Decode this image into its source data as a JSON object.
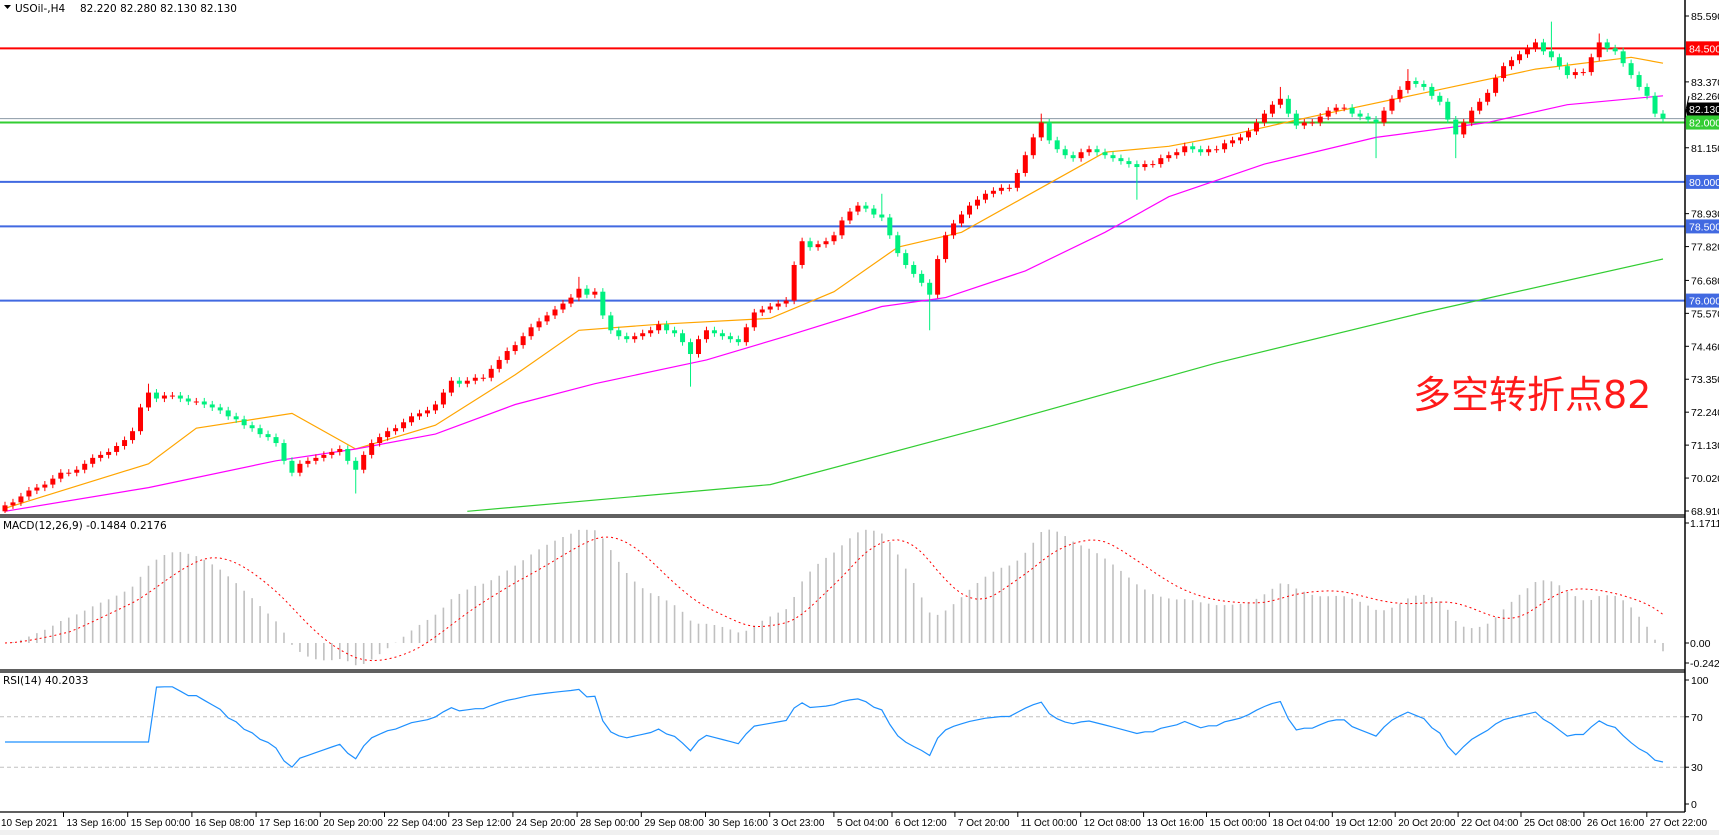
{
  "header": {
    "symbol": "USOil-,H4",
    "ohlc_text": "82.220 82.280 82.130 82.130"
  },
  "annotation": {
    "text": "多空转折点82",
    "color": "#ff1a1a"
  },
  "colors": {
    "up_candle": "#ff0000",
    "down_candle": "#00f07f",
    "ma_fast": "#ffa500",
    "ma_mid": "#ff00ff",
    "ma_slow": "#32cd32",
    "resistance": "#ff0000",
    "pivot": "#32cd32",
    "support": "#4169e1",
    "macd_hist": "#c0c0c0",
    "macd_signal": "#ff0000",
    "rsi": "#1e90ff",
    "bid_line": "#8c9aa6"
  },
  "chart_data": [
    {
      "type": "candlestick",
      "title": "USOil-,H4",
      "ylim": [
        68.91,
        85.59
      ],
      "y_ticks": [
        "85.590",
        "84.500",
        "83.370",
        "82.260",
        "82.000",
        "81.150",
        "80.000",
        "78.930",
        "78.500",
        "77.820",
        "76.680",
        "76.000",
        "75.570",
        "74.460",
        "73.350",
        "72.240",
        "71.130",
        "70.020",
        "68.910"
      ],
      "current_price": "82.130",
      "close": [
        69.1,
        69.2,
        69.4,
        69.6,
        69.7,
        69.8,
        70.0,
        70.2,
        70.2,
        70.3,
        70.5,
        70.7,
        70.8,
        70.9,
        71.1,
        71.3,
        71.6,
        72.4,
        72.9,
        72.7,
        72.8,
        72.8,
        72.7,
        72.6,
        72.6,
        72.5,
        72.4,
        72.3,
        72.1,
        72.0,
        71.8,
        71.7,
        71.5,
        71.4,
        71.2,
        70.6,
        70.2,
        70.5,
        70.6,
        70.7,
        70.8,
        70.9,
        71.0,
        70.6,
        70.3,
        70.8,
        71.2,
        71.4,
        71.6,
        71.7,
        71.9,
        72.1,
        72.2,
        72.3,
        72.5,
        72.9,
        73.3,
        73.2,
        73.3,
        73.4,
        73.4,
        73.7,
        74.0,
        74.3,
        74.5,
        74.8,
        75.1,
        75.3,
        75.5,
        75.7,
        75.9,
        76.1,
        76.4,
        76.2,
        76.3,
        75.5,
        75.0,
        74.8,
        74.7,
        74.8,
        74.9,
        75.0,
        75.2,
        75.0,
        74.9,
        74.6,
        74.2,
        74.7,
        75.0,
        74.9,
        74.8,
        74.7,
        74.6,
        75.1,
        75.6,
        75.7,
        75.8,
        75.9,
        76.0,
        77.2,
        78.0,
        77.8,
        77.9,
        78.0,
        78.2,
        78.7,
        79.0,
        79.2,
        79.1,
        78.9,
        78.8,
        78.2,
        77.6,
        77.2,
        76.9,
        76.6,
        76.2,
        77.4,
        78.2,
        78.6,
        78.9,
        79.2,
        79.4,
        79.6,
        79.7,
        79.8,
        79.8,
        80.3,
        80.9,
        81.5,
        82.0,
        81.4,
        81.1,
        80.9,
        80.8,
        81.0,
        81.1,
        81.0,
        80.9,
        80.8,
        80.7,
        80.6,
        80.5,
        80.6,
        80.6,
        80.8,
        80.9,
        81.0,
        81.2,
        81.1,
        81.0,
        81.1,
        81.1,
        81.3,
        81.4,
        81.5,
        81.7,
        82.0,
        82.3,
        82.6,
        82.8,
        82.3,
        81.9,
        82.0,
        82.0,
        82.2,
        82.4,
        82.5,
        82.5,
        82.3,
        82.2,
        82.1,
        82.0,
        82.4,
        82.8,
        83.1,
        83.4,
        83.3,
        83.2,
        82.9,
        82.7,
        82.1,
        81.6,
        82.0,
        82.4,
        82.7,
        83.0,
        83.5,
        83.9,
        84.1,
        84.3,
        84.5,
        84.7,
        84.4,
        84.2,
        83.9,
        83.6,
        83.7,
        83.7,
        84.2,
        84.7,
        84.5,
        84.4,
        84.0,
        83.6,
        83.2,
        82.9,
        82.3,
        82.13
      ],
      "first_open": 68.9,
      "wick_extremes": [
        {
          "bar": 18,
          "high": 73.2
        },
        {
          "bar": 44,
          "low": 69.5
        },
        {
          "bar": 72,
          "high": 76.8
        },
        {
          "bar": 86,
          "low": 73.1
        },
        {
          "bar": 110,
          "high": 79.6
        },
        {
          "bar": 116,
          "low": 75.0
        },
        {
          "bar": 130,
          "high": 82.3
        },
        {
          "bar": 142,
          "low": 79.4
        },
        {
          "bar": 160,
          "high": 83.2
        },
        {
          "bar": 172,
          "low": 80.8
        },
        {
          "bar": 176,
          "high": 83.8
        },
        {
          "bar": 182,
          "low": 80.8
        },
        {
          "bar": 194,
          "high": 85.4
        },
        {
          "bar": 200,
          "high": 85.0
        }
      ],
      "moving_averages": [
        {
          "bars": [
            0,
            18,
            24,
            36,
            44,
            54,
            64,
            72,
            82,
            96,
            104,
            112,
            120,
            128,
            138,
            146,
            154,
            164,
            178,
            192,
            204,
            208
          ],
          "values": [
            69.0,
            70.5,
            71.7,
            72.2,
            71.0,
            71.8,
            73.5,
            75.0,
            75.2,
            75.4,
            76.3,
            77.8,
            78.3,
            79.5,
            81.0,
            81.2,
            81.6,
            82.2,
            83.0,
            83.8,
            84.2,
            84.0
          ]
        },
        {
          "bars": [
            0,
            18,
            34,
            44,
            54,
            64,
            74,
            88,
            98,
            110,
            118,
            128,
            138,
            146,
            158,
            172,
            186,
            196,
            208
          ],
          "values": [
            68.9,
            69.7,
            70.6,
            71.0,
            71.5,
            72.5,
            73.2,
            74.0,
            74.8,
            75.8,
            76.1,
            77.0,
            78.3,
            79.5,
            80.6,
            81.5,
            82.0,
            82.6,
            82.9
          ]
        },
        {
          "bars": [
            58,
            96,
            124,
            152,
            178,
            208
          ],
          "values": [
            68.9,
            69.8,
            71.8,
            73.9,
            75.6,
            77.4
          ]
        }
      ],
      "horizontal_levels": [
        {
          "price": 84.5,
          "label": "84.500",
          "role": "resistance"
        },
        {
          "price": 82.0,
          "label": "82.000",
          "role": "pivot"
        },
        {
          "price": 80.0,
          "label": "80.000",
          "role": "support"
        },
        {
          "price": 78.5,
          "label": "78.500",
          "role": "support"
        },
        {
          "price": 76.0,
          "label": "76.000",
          "role": "support"
        }
      ],
      "x_ticks": [
        "10 Sep 2021",
        "13 Sep 16:00",
        "15 Sep 00:00",
        "16 Sep 08:00",
        "17 Sep 16:00",
        "20 Sep 20:00",
        "22 Sep 04:00",
        "23 Sep 12:00",
        "24 Sep 20:00",
        "28 Sep 00:00",
        "29 Sep 08:00",
        "30 Sep 16:00",
        "3 Oct 23:00",
        "5 Oct 04:00",
        "6 Oct 12:00",
        "7 Oct 20:00",
        "11 Oct 00:00",
        "12 Oct 08:00",
        "13 Oct 16:00",
        "15 Oct 00:00",
        "18 Oct 04:00",
        "19 Oct 12:00",
        "20 Oct 20:00",
        "22 Oct 04:00",
        "25 Oct 08:00",
        "26 Oct 16:00",
        "27 Oct 22:00"
      ]
    },
    {
      "type": "bar",
      "title": "MACD(12,26,9) -0.1484 0.2176",
      "ylim": [
        -0.2424,
        1.1711
      ],
      "y_ticks": [
        "1.1711",
        "0.00",
        "-0.2424"
      ]
    },
    {
      "type": "line",
      "title": "RSI(14) 40.2033",
      "ylim": [
        0,
        100
      ],
      "y_ticks": [
        "100",
        "70",
        "30",
        "0"
      ],
      "levels": [
        70,
        30
      ]
    }
  ]
}
